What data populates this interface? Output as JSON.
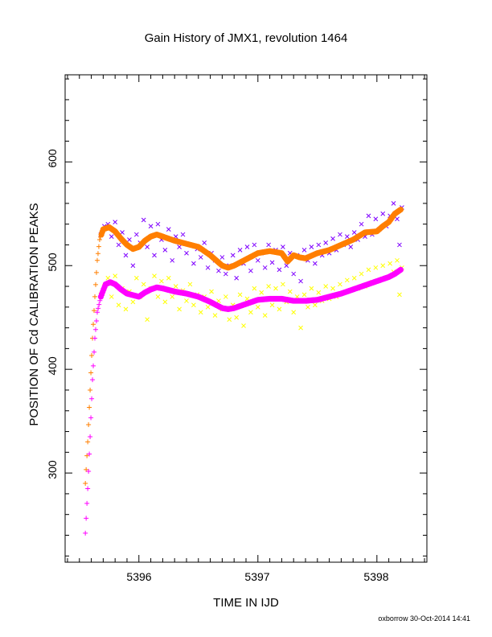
{
  "chart_data": {
    "type": "scatter",
    "title": "Gain History of JMX1, revolution 1464",
    "xlabel": "TIME IN IJD",
    "ylabel": "POSITION OF Cd CALIBRATION PEAKS",
    "xlim": [
      5395.38,
      5398.42
    ],
    "ylim": [
      214,
      684
    ],
    "x_ticks": [
      5396,
      5397,
      5398
    ],
    "y_ticks": [
      300,
      400,
      500,
      600
    ],
    "grid": false,
    "legend": "none",
    "footer": "oxborrow 30-Oct-2014 14:41",
    "colors": {
      "upper_raw": "#7f00ff",
      "upper_smooth": "#ff7f00",
      "lower_raw": "#ffff00",
      "lower_smooth": "#ff00ff"
    },
    "series": [
      {
        "id": "upper_smooth",
        "marker": "filled",
        "points": [
          [
            5395.55,
            290
          ],
          [
            5395.57,
            330
          ],
          [
            5395.59,
            380
          ],
          [
            5395.61,
            430
          ],
          [
            5395.63,
            470
          ],
          [
            5395.65,
            505
          ],
          [
            5395.67,
            525
          ],
          [
            5395.7,
            535
          ],
          [
            5395.75,
            537
          ],
          [
            5395.8,
            533
          ],
          [
            5395.85,
            526
          ],
          [
            5395.9,
            520
          ],
          [
            5395.95,
            516
          ],
          [
            5396.0,
            518
          ],
          [
            5396.05,
            524
          ],
          [
            5396.1,
            528
          ],
          [
            5396.15,
            530
          ],
          [
            5396.2,
            528
          ],
          [
            5396.3,
            524
          ],
          [
            5396.4,
            521
          ],
          [
            5396.5,
            518
          ],
          [
            5396.6,
            510
          ],
          [
            5396.7,
            500
          ],
          [
            5396.75,
            498
          ],
          [
            5396.8,
            500
          ],
          [
            5396.9,
            506
          ],
          [
            5397.0,
            512
          ],
          [
            5397.1,
            514
          ],
          [
            5397.2,
            512
          ],
          [
            5397.25,
            504
          ],
          [
            5397.3,
            510
          ],
          [
            5397.35,
            508
          ],
          [
            5397.4,
            507
          ],
          [
            5397.5,
            512
          ],
          [
            5397.6,
            515
          ],
          [
            5397.7,
            520
          ],
          [
            5397.8,
            525
          ],
          [
            5397.9,
            532
          ],
          [
            5398.0,
            533
          ],
          [
            5398.05,
            538
          ],
          [
            5398.1,
            542
          ],
          [
            5398.15,
            550
          ],
          [
            5398.2,
            554
          ]
        ]
      },
      {
        "id": "lower_smooth",
        "marker": "filled",
        "points": [
          [
            5395.55,
            242
          ],
          [
            5395.57,
            285
          ],
          [
            5395.59,
            335
          ],
          [
            5395.61,
            390
          ],
          [
            5395.63,
            430
          ],
          [
            5395.65,
            455
          ],
          [
            5395.68,
            470
          ],
          [
            5395.72,
            482
          ],
          [
            5395.76,
            484
          ],
          [
            5395.8,
            482
          ],
          [
            5395.85,
            477
          ],
          [
            5395.9,
            473
          ],
          [
            5396.0,
            470
          ],
          [
            5396.05,
            474
          ],
          [
            5396.1,
            477
          ],
          [
            5396.15,
            479
          ],
          [
            5396.2,
            478
          ],
          [
            5396.3,
            475
          ],
          [
            5396.4,
            473
          ],
          [
            5396.5,
            470
          ],
          [
            5396.6,
            465
          ],
          [
            5396.7,
            459
          ],
          [
            5396.75,
            458
          ],
          [
            5396.8,
            459
          ],
          [
            5396.9,
            463
          ],
          [
            5397.0,
            467
          ],
          [
            5397.1,
            468
          ],
          [
            5397.2,
            468
          ],
          [
            5397.3,
            466
          ],
          [
            5397.4,
            466
          ],
          [
            5397.5,
            467
          ],
          [
            5397.6,
            470
          ],
          [
            5397.7,
            473
          ],
          [
            5397.8,
            477
          ],
          [
            5397.9,
            481
          ],
          [
            5398.0,
            485
          ],
          [
            5398.1,
            489
          ],
          [
            5398.15,
            492
          ],
          [
            5398.2,
            496
          ]
        ]
      },
      {
        "id": "upper_raw",
        "marker": "x",
        "points": [
          [
            5395.68,
            530
          ],
          [
            5395.71,
            538
          ],
          [
            5395.74,
            540
          ],
          [
            5395.77,
            528
          ],
          [
            5395.8,
            542
          ],
          [
            5395.83,
            520
          ],
          [
            5395.86,
            532
          ],
          [
            5395.89,
            510
          ],
          [
            5395.92,
            525
          ],
          [
            5395.95,
            500
          ],
          [
            5395.98,
            530
          ],
          [
            5396.01,
            522
          ],
          [
            5396.04,
            544
          ],
          [
            5396.07,
            518
          ],
          [
            5396.1,
            538
          ],
          [
            5396.13,
            510
          ],
          [
            5396.16,
            540
          ],
          [
            5396.19,
            525
          ],
          [
            5396.22,
            515
          ],
          [
            5396.25,
            535
          ],
          [
            5396.28,
            505
          ],
          [
            5396.31,
            528
          ],
          [
            5396.34,
            518
          ],
          [
            5396.37,
            530
          ],
          [
            5396.4,
            512
          ],
          [
            5396.43,
            520
          ],
          [
            5396.46,
            502
          ],
          [
            5396.49,
            516
          ],
          [
            5396.52,
            508
          ],
          [
            5396.55,
            522
          ],
          [
            5396.58,
            498
          ],
          [
            5396.61,
            512
          ],
          [
            5396.64,
            505
          ],
          [
            5396.67,
            495
          ],
          [
            5396.7,
            508
          ],
          [
            5396.73,
            492
          ],
          [
            5396.76,
            500
          ],
          [
            5396.79,
            510
          ],
          [
            5396.82,
            488
          ],
          [
            5396.85,
            515
          ],
          [
            5396.88,
            502
          ],
          [
            5396.91,
            518
          ],
          [
            5396.94,
            495
          ],
          [
            5396.97,
            520
          ],
          [
            5397.0,
            505
          ],
          [
            5397.03,
            512
          ],
          [
            5397.06,
            498
          ],
          [
            5397.09,
            520
          ],
          [
            5397.12,
            503
          ],
          [
            5397.15,
            515
          ],
          [
            5397.18,
            496
          ],
          [
            5397.21,
            518
          ],
          [
            5397.24,
            500
          ],
          [
            5397.27,
            512
          ],
          [
            5397.3,
            492
          ],
          [
            5397.33,
            510
          ],
          [
            5397.36,
            485
          ],
          [
            5397.39,
            515
          ],
          [
            5397.42,
            505
          ],
          [
            5397.45,
            518
          ],
          [
            5397.48,
            502
          ],
          [
            5397.51,
            520
          ],
          [
            5397.54,
            510
          ],
          [
            5397.57,
            522
          ],
          [
            5397.6,
            512
          ],
          [
            5397.63,
            526
          ],
          [
            5397.66,
            515
          ],
          [
            5397.69,
            530
          ],
          [
            5397.72,
            520
          ],
          [
            5397.75,
            528
          ],
          [
            5397.78,
            518
          ],
          [
            5397.81,
            532
          ],
          [
            5397.84,
            525
          ],
          [
            5397.87,
            540
          ],
          [
            5397.9,
            528
          ],
          [
            5397.93,
            548
          ],
          [
            5397.96,
            530
          ],
          [
            5397.99,
            545
          ],
          [
            5398.02,
            535
          ],
          [
            5398.05,
            550
          ],
          [
            5398.08,
            538
          ],
          [
            5398.11,
            548
          ],
          [
            5398.14,
            560
          ],
          [
            5398.17,
            545
          ],
          [
            5398.19,
            520
          ],
          [
            5398.21,
            556
          ]
        ]
      },
      {
        "id": "lower_raw",
        "marker": "x",
        "points": [
          [
            5395.68,
            472
          ],
          [
            5395.71,
            480
          ],
          [
            5395.74,
            488
          ],
          [
            5395.77,
            470
          ],
          [
            5395.8,
            490
          ],
          [
            5395.83,
            462
          ],
          [
            5395.86,
            478
          ],
          [
            5395.89,
            458
          ],
          [
            5395.92,
            475
          ],
          [
            5395.95,
            465
          ],
          [
            5395.98,
            488
          ],
          [
            5396.01,
            470
          ],
          [
            5396.04,
            482
          ],
          [
            5396.07,
            448
          ],
          [
            5396.1,
            478
          ],
          [
            5396.13,
            490
          ],
          [
            5396.16,
            470
          ],
          [
            5396.19,
            485
          ],
          [
            5396.22,
            465
          ],
          [
            5396.25,
            488
          ],
          [
            5396.28,
            470
          ],
          [
            5396.31,
            480
          ],
          [
            5396.34,
            458
          ],
          [
            5396.37,
            476
          ],
          [
            5396.4,
            466
          ],
          [
            5396.43,
            482
          ],
          [
            5396.46,
            462
          ],
          [
            5396.49,
            472
          ],
          [
            5396.52,
            455
          ],
          [
            5396.55,
            470
          ],
          [
            5396.58,
            460
          ],
          [
            5396.61,
            475
          ],
          [
            5396.64,
            452
          ],
          [
            5396.67,
            466
          ],
          [
            5396.7,
            458
          ],
          [
            5396.73,
            470
          ],
          [
            5396.76,
            448
          ],
          [
            5396.79,
            462
          ],
          [
            5396.82,
            450
          ],
          [
            5396.85,
            472
          ],
          [
            5396.88,
            442
          ],
          [
            5396.91,
            468
          ],
          [
            5396.94,
            455
          ],
          [
            5396.97,
            478
          ],
          [
            5397.0,
            460
          ],
          [
            5397.03,
            474
          ],
          [
            5397.06,
            452
          ],
          [
            5397.09,
            480
          ],
          [
            5397.12,
            462
          ],
          [
            5397.15,
            478
          ],
          [
            5397.18,
            458
          ],
          [
            5397.21,
            482
          ],
          [
            5397.24,
            465
          ],
          [
            5397.27,
            475
          ],
          [
            5397.3,
            455
          ],
          [
            5397.33,
            470
          ],
          [
            5397.36,
            440
          ],
          [
            5397.39,
            472
          ],
          [
            5397.42,
            460
          ],
          [
            5397.45,
            478
          ],
          [
            5397.48,
            462
          ],
          [
            5397.51,
            474
          ],
          [
            5397.54,
            466
          ],
          [
            5397.57,
            480
          ],
          [
            5397.6,
            468
          ],
          [
            5397.63,
            478
          ],
          [
            5397.66,
            470
          ],
          [
            5397.69,
            482
          ],
          [
            5397.72,
            474
          ],
          [
            5397.75,
            486
          ],
          [
            5397.78,
            476
          ],
          [
            5397.81,
            488
          ],
          [
            5397.84,
            478
          ],
          [
            5397.87,
            492
          ],
          [
            5397.9,
            480
          ],
          [
            5397.93,
            496
          ],
          [
            5397.96,
            484
          ],
          [
            5397.99,
            498
          ],
          [
            5398.02,
            486
          ],
          [
            5398.05,
            500
          ],
          [
            5398.08,
            488
          ],
          [
            5398.11,
            502
          ],
          [
            5398.14,
            494
          ],
          [
            5398.17,
            505
          ],
          [
            5398.19,
            472
          ],
          [
            5398.21,
            498
          ]
        ]
      }
    ]
  }
}
